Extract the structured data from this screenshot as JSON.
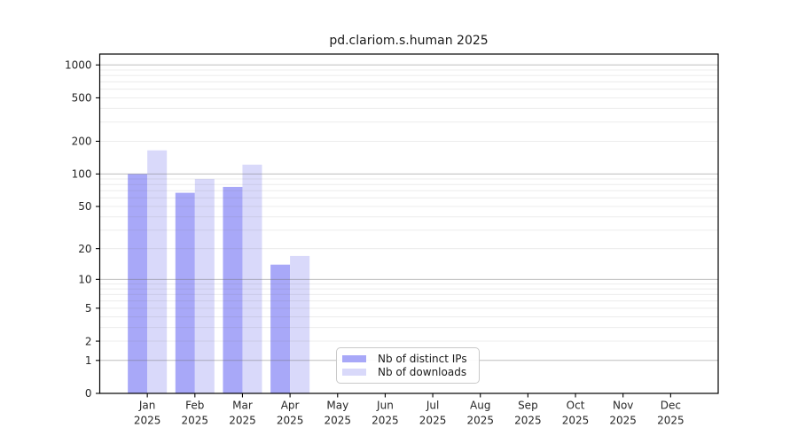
{
  "chart_data": {
    "type": "bar",
    "title": "pd.clariom.s.human 2025",
    "x_categories": [
      "Jan",
      "Feb",
      "Mar",
      "Apr",
      "May",
      "Jun",
      "Jul",
      "Aug",
      "Sep",
      "Oct",
      "Nov",
      "Dec"
    ],
    "x_year_label": "2025",
    "series": [
      {
        "name": "Nb of distinct IPs",
        "color": "#a8a8f8",
        "values": [
          100,
          67,
          76,
          14,
          null,
          null,
          null,
          null,
          null,
          null,
          null,
          null
        ]
      },
      {
        "name": "Nb of downloads",
        "color": "#d9d9fa",
        "values": [
          165,
          90,
          122,
          17,
          null,
          null,
          null,
          null,
          null,
          null,
          null,
          null
        ]
      }
    ],
    "y_ticks": [
      0,
      1,
      2,
      5,
      10,
      20,
      50,
      100,
      200,
      500,
      1000
    ],
    "y_scale": "log10(1+v)",
    "y_axis_max_value": 1258,
    "ylim": [
      0,
      1258
    ],
    "grid": "horizontal, minor log subdivisions",
    "legend_position": "inside bottom-center",
    "colors": {
      "major_gridline": "#c3c3c3",
      "minor_gridline": "#ebebeb",
      "axis_spine": "#000000",
      "tick_label": "#262626"
    }
  }
}
